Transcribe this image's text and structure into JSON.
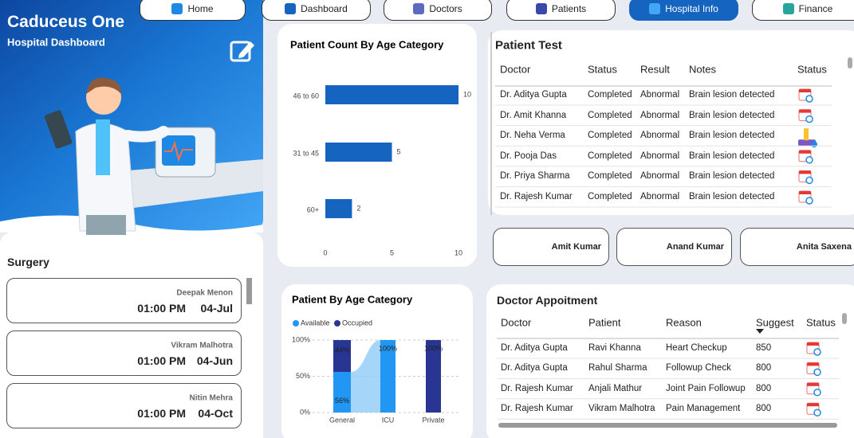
{
  "nav": [
    "Home",
    "Dashboard",
    "Doctors",
    "Patients",
    "Hospital Info",
    "Finance"
  ],
  "active_nav": 4,
  "header": {
    "title": "Caduceus One",
    "subtitle": "Hospital Dashboard"
  },
  "surgery": {
    "title": "Surgery",
    "items": [
      {
        "name": "Deepak Menon",
        "time": "01:00 PM",
        "date": "04-Jul"
      },
      {
        "name": "Vikram Malhotra",
        "time": "01:00 PM",
        "date": "04-Jun"
      },
      {
        "name": "Nitin Mehra",
        "time": "01:00 PM",
        "date": "04-Oct"
      }
    ]
  },
  "chart_data": [
    {
      "type": "hbar",
      "title": "Patient Count By Age Category",
      "categories": [
        "46 to 60",
        "31 to 45",
        "60+"
      ],
      "values": [
        10,
        5,
        2
      ],
      "color": "#1565c0",
      "xlim": [
        0,
        10
      ],
      "xticks": [
        0,
        5,
        10
      ]
    },
    {
      "type": "stacked_bar",
      "title": "Patient By Age Category",
      "categories": [
        "General",
        "ICU",
        "Private"
      ],
      "series": [
        {
          "name": "Available",
          "color": "#2196f3",
          "values": [
            56,
            100,
            0
          ],
          "value_labels": [
            "56%",
            "100%",
            null
          ]
        },
        {
          "name": "Occupied",
          "color": "#283593",
          "values": [
            44,
            0,
            100
          ],
          "value_labels": [
            "44%",
            null,
            "100%"
          ]
        }
      ],
      "ylim": [
        0,
        100
      ],
      "yticks": [
        {
          "value": 0,
          "label": "0%"
        },
        {
          "value": 50,
          "label": "50%"
        },
        {
          "value": 100,
          "label": "100%"
        }
      ],
      "grid": true,
      "legend": "top-left"
    }
  ],
  "patient_test": {
    "title": "Patient Test",
    "columns": [
      "Doctor",
      "Status",
      "Result",
      "Notes",
      "Status"
    ],
    "rows": [
      [
        "Dr. Aditya Gupta",
        "Completed",
        "Abnormal",
        "Brain lesion detected"
      ],
      [
        "Dr. Amit Khanna",
        "Completed",
        "Abnormal",
        "Brain lesion detected"
      ],
      [
        "Dr. Neha Verma",
        "Completed",
        "Abnormal",
        "Brain lesion detected"
      ],
      [
        "Dr. Pooja Das",
        "Completed",
        "Abnormal",
        "Brain lesion detected"
      ],
      [
        "Dr. Priya Sharma",
        "Completed",
        "Abnormal",
        "Brain lesion detected"
      ],
      [
        "Dr. Rajesh Kumar",
        "Completed",
        "Abnormal",
        "Brain lesion detected"
      ]
    ]
  },
  "doctor_cards": [
    "Amit Kumar",
    "Anand Kumar",
    "Anita Saxena"
  ],
  "appointments": {
    "title": "Doctor Appoitment",
    "columns": [
      "Doctor",
      "Patient",
      "Reason",
      "Suggest",
      "Status"
    ],
    "rows": [
      [
        "Dr. Aditya Gupta",
        "Ravi Khanna",
        "Heart Checkup",
        850
      ],
      [
        "Dr. Aditya Gupta",
        "Rahul Sharma",
        "Followup Check",
        800
      ],
      [
        "Dr. Rajesh Kumar",
        "Anjali Mathur",
        "Joint Pain Followup",
        800
      ],
      [
        "Dr. Rajesh Kumar",
        "Vikram Malhotra",
        "Pain Management",
        800
      ]
    ]
  }
}
